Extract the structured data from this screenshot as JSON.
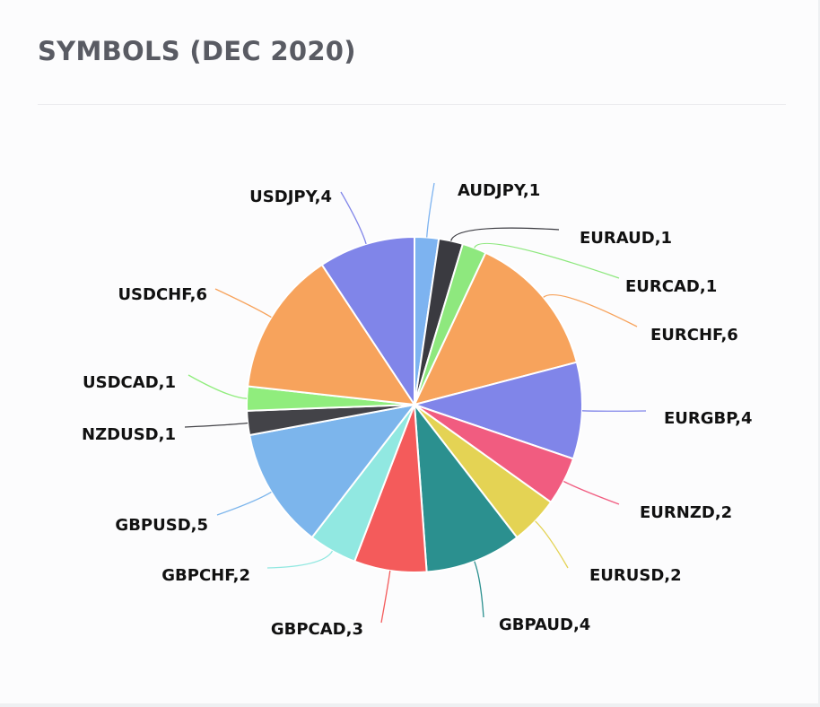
{
  "header": {
    "title": "SYMBOLS (DEC 2020)"
  },
  "chart_data": {
    "type": "pie",
    "title": "SYMBOLS (DEC 2020)",
    "categories": [
      "AUDJPY",
      "EURAUD",
      "EURCAD",
      "EURCHF",
      "EURGBP",
      "EURNZD",
      "EURUSD",
      "GBPAUD",
      "GBPCAD",
      "GBPCHF",
      "GBPUSD",
      "NZDUSD",
      "USDCAD",
      "USDCHF",
      "USDJPY"
    ],
    "values": [
      1,
      1,
      1,
      6,
      4,
      2,
      2,
      4,
      3,
      2,
      5,
      1,
      1,
      6,
      4
    ],
    "labels": [
      "AUDJPY,1",
      "EURAUD,1",
      "EURCAD,1",
      "EURCHF,6",
      "EURGBP,4",
      "EURNZD,2",
      "EURUSD,2",
      "GBPAUD,4",
      "GBPCAD,3",
      "GBPCHF,2",
      "GBPUSD,5",
      "NZDUSD,1",
      "USDCAD,1",
      "USDCHF,6",
      "USDJPY,4"
    ],
    "colors": [
      "#7db3f0",
      "#3a3a40",
      "#8ee87e",
      "#f7a35c",
      "#8085e9",
      "#f15c80",
      "#e4d354",
      "#2b908f",
      "#f45b5b",
      "#91e8e1",
      "#7cb5ec",
      "#434348",
      "#90ed7d",
      "#f7a35c",
      "#8085e9"
    ],
    "start_angle_deg": 0,
    "direction": "clockwise",
    "legend": "none"
  }
}
